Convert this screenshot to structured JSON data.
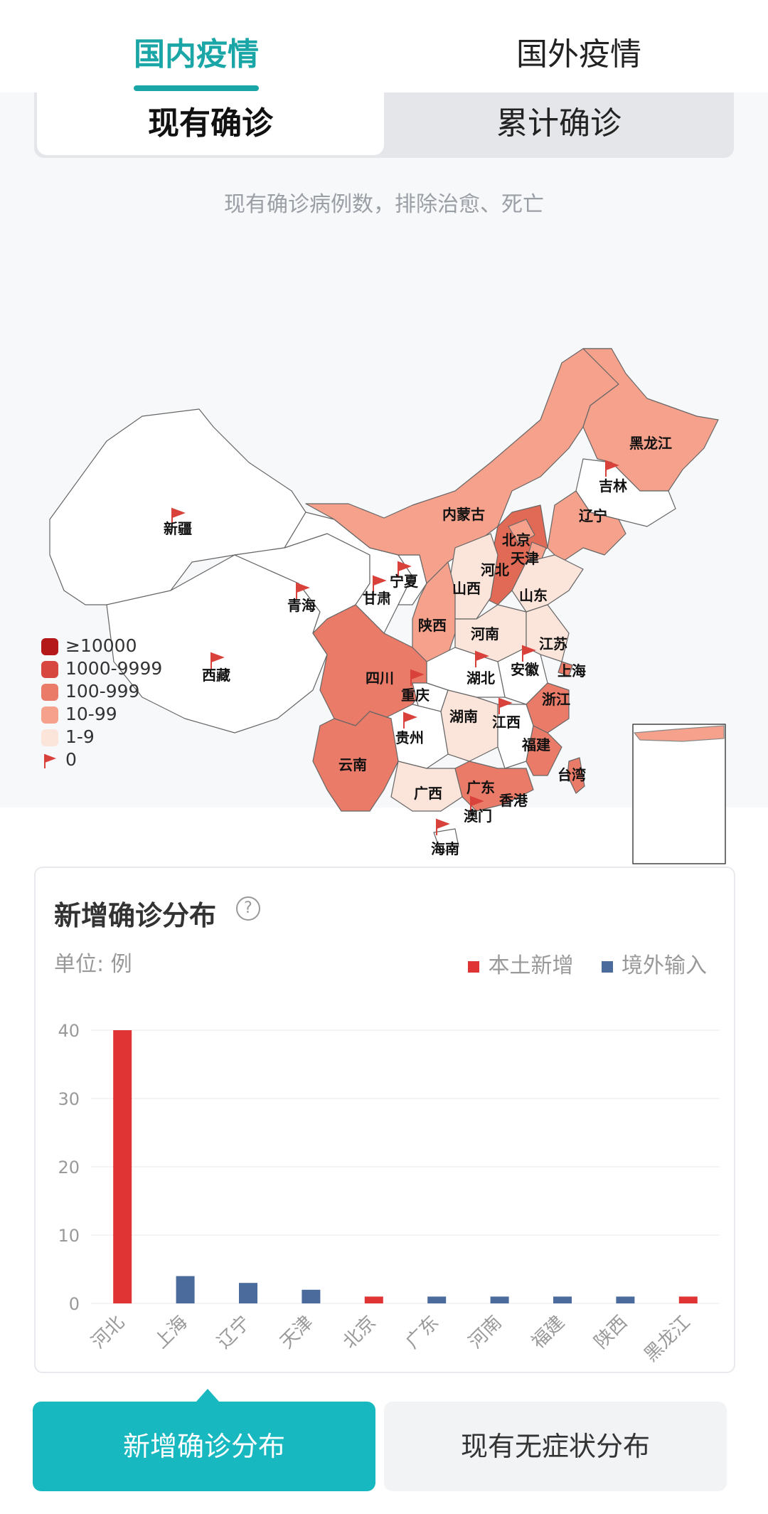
{
  "tabs": {
    "domestic": "国内疫情",
    "overseas": "国外疫情"
  },
  "segments": {
    "current": "现有确诊",
    "cumulative": "累计确诊"
  },
  "map": {
    "note": "现有确诊病例数，排除治愈、死亡",
    "provinces": [
      "黑龙江",
      "吉林",
      "辽宁",
      "内蒙古",
      "北京",
      "天津",
      "河北",
      "山西",
      "山东",
      "宁夏",
      "甘肃",
      "青海",
      "新疆",
      "西藏",
      "陕西",
      "河南",
      "江苏",
      "上海",
      "安徽",
      "湖北",
      "四川",
      "重庆",
      "浙江",
      "湖南",
      "江西",
      "贵州",
      "云南",
      "福建",
      "台湾",
      "广西",
      "广东",
      "香港",
      "澳门",
      "海南"
    ],
    "legend": [
      {
        "label": "≥10000",
        "color": "#b51818"
      },
      {
        "label": "1000-9999",
        "color": "#d8473f"
      },
      {
        "label": "100-999",
        "color": "#ea7b69"
      },
      {
        "label": "10-99",
        "color": "#f5a18c"
      },
      {
        "label": "1-9",
        "color": "#fbe4da"
      },
      {
        "label": "0",
        "color": "#d9413b"
      }
    ]
  },
  "chart_card": {
    "title": "新增确诊分布",
    "unit": "单位: 例",
    "legend_local": "本土新增",
    "legend_imported": "境外输入",
    "color_local": "#e03333",
    "color_imported": "#4a6b9c"
  },
  "chart_data": {
    "type": "bar",
    "categories": [
      "河北",
      "上海",
      "辽宁",
      "天津",
      "北京",
      "广东",
      "河南",
      "福建",
      "陕西",
      "黑龙江"
    ],
    "series": [
      {
        "name": "本土新增",
        "values": [
          40,
          0,
          0,
          0,
          1,
          0,
          0,
          0,
          0,
          1
        ]
      },
      {
        "name": "境外输入",
        "values": [
          0,
          4,
          3,
          2,
          0,
          1,
          1,
          1,
          1,
          0
        ]
      }
    ],
    "ylim": [
      0,
      40
    ],
    "yticks": [
      0,
      10,
      20,
      30,
      40
    ]
  },
  "bottom_buttons": {
    "left": "新增确诊分布",
    "right": "现有无症状分布"
  }
}
